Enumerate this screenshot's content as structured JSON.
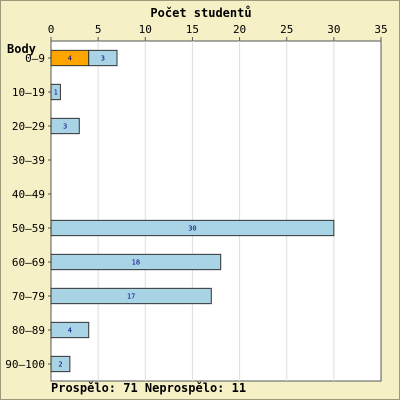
{
  "chart_data": {
    "type": "bar",
    "orientation": "horizontal",
    "stacked": true,
    "title": "Počet studentů",
    "ylabel": "Body",
    "categories": [
      "0–9",
      "10–19",
      "20–29",
      "30–39",
      "40–49",
      "50–59",
      "60–69",
      "70–79",
      "80–89",
      "90–100"
    ],
    "series": [
      {
        "values": [
          4,
          0,
          0,
          0,
          0,
          0,
          0,
          0,
          0,
          0
        ],
        "color": "#ffa500"
      },
      {
        "values": [
          3,
          1,
          3,
          0,
          0,
          30,
          18,
          17,
          4,
          2
        ],
        "color": "#a8d4e6"
      }
    ],
    "xlim": [
      0,
      35
    ],
    "xticks": [
      0,
      5,
      10,
      15,
      20,
      25,
      30,
      35
    ],
    "grid": "vertical",
    "background": "#f5f0c6",
    "plot_background": "#ffffff"
  },
  "footer": "Prospělo: 71  Neprospělo: 11"
}
